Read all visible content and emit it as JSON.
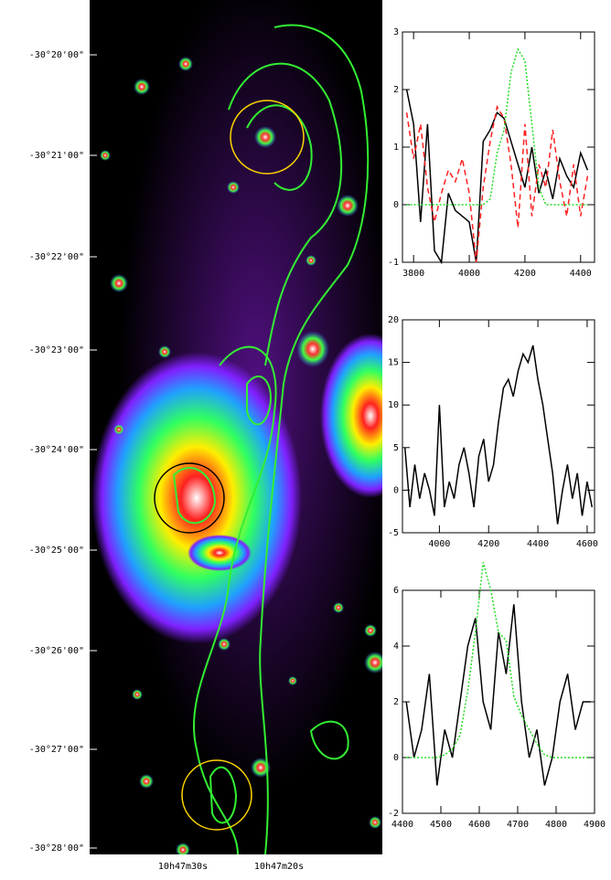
{
  "image": {
    "dec_labels": [
      "-30°20'00\"",
      "-30°21'00\"",
      "-30°22'00\"",
      "-30°23'00\"",
      "-30°24'00\"",
      "-30°25'00\"",
      "-30°26'00\"",
      "-30°27'00\"",
      "-30°28'00\""
    ],
    "ra_labels": [
      "10h47m30s",
      "10h47m20s"
    ]
  },
  "chart_data": [
    {
      "type": "line",
      "x": [
        3775,
        3800,
        3825,
        3850,
        3875,
        3900,
        3925,
        3950,
        3975,
        4000,
        4025,
        4050,
        4075,
        4100,
        4125,
        4150,
        4175,
        4200,
        4225,
        4250,
        4275,
        4300,
        4325,
        4350,
        4375,
        4400,
        4425
      ],
      "xlim": [
        3760,
        4450
      ],
      "xticks": [
        3800,
        4000,
        4200,
        4400
      ],
      "ylim": [
        -1,
        3
      ],
      "yticks": [
        -1,
        0,
        1,
        2,
        3
      ],
      "series": [
        {
          "color": "#000000",
          "dash": "solid",
          "values": [
            2,
            1.4,
            -0.3,
            1.4,
            -0.8,
            -1,
            0.2,
            -0.1,
            -0.2,
            -0.3,
            -1,
            1.1,
            1.3,
            1.6,
            1.5,
            1.1,
            0.7,
            0.3,
            1.0,
            0.2,
            0.6,
            0.1,
            0.8,
            0.5,
            0.3,
            0.9,
            0.6
          ]
        },
        {
          "color": "#ff2020",
          "dash": "dashed",
          "values": [
            1.6,
            0.8,
            1.4,
            0.3,
            -0.3,
            0.2,
            0.6,
            0.4,
            0.8,
            0.2,
            -1,
            0.3,
            1.1,
            1.7,
            1.5,
            0.7,
            -0.4,
            1.4,
            -0.2,
            0.7,
            0.3,
            1.3,
            0.4,
            -0.2,
            0.7,
            -0.2,
            0.5
          ]
        },
        {
          "color": "#22dd22",
          "dash": "dotted",
          "values": [
            0,
            0,
            0,
            0,
            0,
            0,
            0,
            0,
            0,
            0,
            0,
            0,
            0.1,
            0.9,
            1.3,
            2.3,
            2.7,
            2.5,
            1.4,
            0.3,
            0,
            0,
            0,
            0,
            0,
            0,
            0
          ]
        }
      ]
    },
    {
      "type": "line",
      "x": [
        3860,
        3880,
        3900,
        3920,
        3940,
        3960,
        3980,
        4000,
        4020,
        4040,
        4060,
        4080,
        4100,
        4120,
        4140,
        4160,
        4180,
        4200,
        4220,
        4240,
        4260,
        4280,
        4300,
        4320,
        4340,
        4360,
        4380,
        4400,
        4420,
        4440,
        4460,
        4480,
        4500,
        4520,
        4540,
        4560,
        4580,
        4600,
        4620
      ],
      "xlim": [
        3850,
        4630
      ],
      "xticks": [
        4000,
        4200,
        4400,
        4600
      ],
      "ylim": [
        -5,
        20
      ],
      "yticks": [
        -5,
        0,
        5,
        10,
        15,
        20
      ],
      "series": [
        {
          "color": "#000000",
          "dash": "solid",
          "values": [
            5,
            -2,
            3,
            -1,
            2,
            0,
            -3,
            10,
            -2,
            1,
            -1,
            3,
            5,
            2,
            -2,
            4,
            6,
            1,
            3,
            8,
            12,
            13,
            11,
            14,
            16,
            15,
            17,
            13,
            10,
            6,
            2,
            -4,
            0,
            3,
            -1,
            2,
            -3,
            1,
            -2
          ]
        }
      ]
    },
    {
      "type": "line",
      "x": [
        4410,
        4430,
        4450,
        4470,
        4490,
        4510,
        4530,
        4550,
        4570,
        4590,
        4610,
        4630,
        4650,
        4670,
        4690,
        4710,
        4730,
        4750,
        4770,
        4790,
        4810,
        4830,
        4850,
        4870,
        4890
      ],
      "xlim": [
        4400,
        4900
      ],
      "xticks": [
        4400,
        4500,
        4600,
        4700,
        4800,
        4900
      ],
      "ylim": [
        -2,
        6
      ],
      "yticks": [
        -2,
        0,
        2,
        4,
        6
      ],
      "series": [
        {
          "color": "#000000",
          "dash": "solid",
          "values": [
            2,
            0,
            1,
            3,
            -1,
            1,
            0,
            2,
            4,
            5,
            2,
            1,
            4.5,
            3,
            5.5,
            2,
            0,
            1,
            -1,
            0,
            2,
            3,
            1,
            2,
            2
          ]
        },
        {
          "color": "#22dd22",
          "dash": "dotted",
          "values": [
            0,
            0,
            0,
            0,
            0,
            0.1,
            0.3,
            0.8,
            2.4,
            4.5,
            7,
            6,
            4.5,
            4.2,
            2.2,
            1.5,
            1,
            0.5,
            0.1,
            0,
            0,
            0,
            0,
            0,
            0
          ]
        }
      ]
    }
  ]
}
